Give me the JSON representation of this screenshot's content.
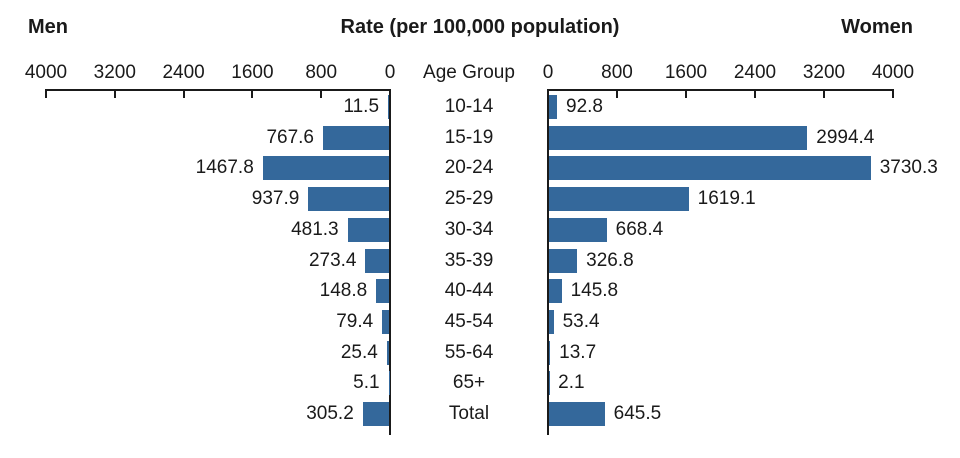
{
  "header": {
    "left": "Men",
    "center": "Rate (per 100,000 population)",
    "right": "Women"
  },
  "axis": {
    "age_group_label": "Age Group",
    "max": 4000,
    "men_ticks": [
      4000,
      3200,
      2400,
      1600,
      800,
      0
    ],
    "women_ticks": [
      0,
      800,
      1600,
      2400,
      3200,
      4000
    ]
  },
  "colors": {
    "bar": "#34689b",
    "axis": "#1a1a1a",
    "text": "#1a1a1a"
  },
  "chart_data": {
    "type": "bar",
    "orientation": "horizontal-bidirectional",
    "title": "Rate (per 100,000 population)",
    "xlabel_left": "Men",
    "xlabel_right": "Women",
    "xlim": [
      0,
      4000
    ],
    "tick_interval": 800,
    "grid": false,
    "value_labels": true,
    "categories": [
      "10-14",
      "15-19",
      "20-24",
      "25-29",
      "30-34",
      "35-39",
      "40-44",
      "45-54",
      "55-64",
      "65+",
      "Total"
    ],
    "series": [
      {
        "name": "Men",
        "side": "left",
        "values": [
          11.5,
          767.6,
          1467.8,
          937.9,
          481.3,
          273.4,
          148.8,
          79.4,
          25.4,
          5.1,
          305.2
        ]
      },
      {
        "name": "Women",
        "side": "right",
        "values": [
          92.8,
          2994.4,
          3730.3,
          1619.1,
          668.4,
          326.8,
          145.8,
          53.4,
          13.7,
          2.1,
          645.5
        ]
      }
    ]
  }
}
